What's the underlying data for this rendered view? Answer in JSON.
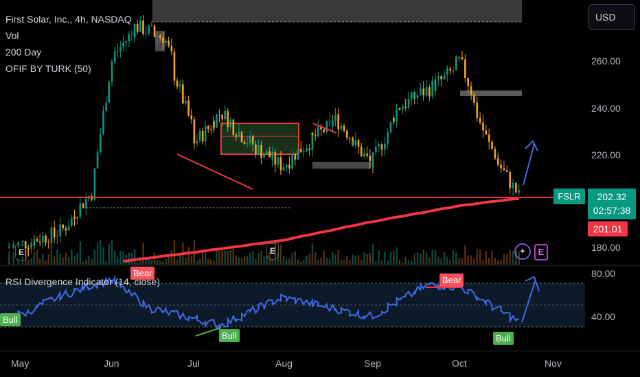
{
  "legend": {
    "title": "First Solar, Inc., 4h, NASDAQ",
    "vol": "Vol",
    "ma": "200 Day",
    "ofif": "OFIF BY TURK (50)"
  },
  "currency": "USD",
  "price_axis": [
    "260.00",
    "240.00",
    "220.00",
    "180.00"
  ],
  "rsi_axis": [
    "80.00",
    "40.00"
  ],
  "months": [
    "May",
    "Jun",
    "Jul",
    "Aug",
    "Sep",
    "Oct",
    "Nov"
  ],
  "tags": {
    "ticker": "FSLR",
    "last_price": "202.32",
    "countdown": "02:57:38",
    "ma_value": "201.01"
  },
  "rsi_title": "RSI Divergence Indicator (14, close)",
  "signals": {
    "bear_1": "Bear",
    "bear_2": "Bear",
    "bull_1": "Bull",
    "bull_2": "Bull",
    "bull_3": "Bull"
  },
  "events": {
    "e1": "E",
    "e2": "E",
    "e3": "E",
    "e4": "E",
    "star": "✦"
  },
  "colors": {
    "up": "#089981",
    "down": "#f7a21b",
    "ma": "#f23645",
    "rsi": "#3d6ce8",
    "zone": "#f23645",
    "bull": "#4caf50",
    "bear": "#f7525f"
  },
  "chart_data": {
    "type": "line",
    "symbol": "FSLR",
    "timeframe": "4h",
    "x": [
      "May",
      "Jun",
      "Jul",
      "Aug",
      "Sep",
      "Oct",
      "Nov"
    ],
    "price_close_approx": [
      {
        "date": "2023-04-28",
        "close": 180
      },
      {
        "date": "2023-05-15",
        "close": 187
      },
      {
        "date": "2023-05-26",
        "close": 205
      },
      {
        "date": "2023-06-01",
        "close": 260
      },
      {
        "date": "2023-06-10",
        "close": 275
      },
      {
        "date": "2023-06-20",
        "close": 270
      },
      {
        "date": "2023-07-01",
        "close": 225
      },
      {
        "date": "2023-07-10",
        "close": 238
      },
      {
        "date": "2023-07-20",
        "close": 225
      },
      {
        "date": "2023-08-01",
        "close": 215
      },
      {
        "date": "2023-08-10",
        "close": 225
      },
      {
        "date": "2023-08-20",
        "close": 235
      },
      {
        "date": "2023-09-01",
        "close": 215
      },
      {
        "date": "2023-09-10",
        "close": 240
      },
      {
        "date": "2023-09-25",
        "close": 252
      },
      {
        "date": "2023-10-01",
        "close": 260
      },
      {
        "date": "2023-10-10",
        "close": 225
      },
      {
        "date": "2023-10-20",
        "close": 202
      }
    ],
    "ma_200_approx": [
      {
        "date": "2023-06-05",
        "close": 174
      },
      {
        "date": "2023-07-01",
        "close": 178
      },
      {
        "date": "2023-08-01",
        "close": 183
      },
      {
        "date": "2023-09-01",
        "close": 191
      },
      {
        "date": "2023-10-01",
        "close": 198
      },
      {
        "date": "2023-10-20",
        "close": 201
      }
    ],
    "rsi_approx": [
      {
        "date": "2023-04-28",
        "rsi": 38
      },
      {
        "date": "2023-05-15",
        "rsi": 60
      },
      {
        "date": "2023-06-01",
        "rsi": 75
      },
      {
        "date": "2023-06-15",
        "rsi": 48
      },
      {
        "date": "2023-07-10",
        "rsi": 32
      },
      {
        "date": "2023-08-01",
        "rsi": 58
      },
      {
        "date": "2023-09-01",
        "rsi": 40
      },
      {
        "date": "2023-09-20",
        "rsi": 70
      },
      {
        "date": "2023-10-01",
        "rsi": 68
      },
      {
        "date": "2023-10-20",
        "rsi": 36
      }
    ],
    "horizontal_levels": [
      202.32
    ],
    "ylim": [
      172,
      282
    ],
    "rsi_levels": [
      70,
      50,
      30
    ]
  }
}
